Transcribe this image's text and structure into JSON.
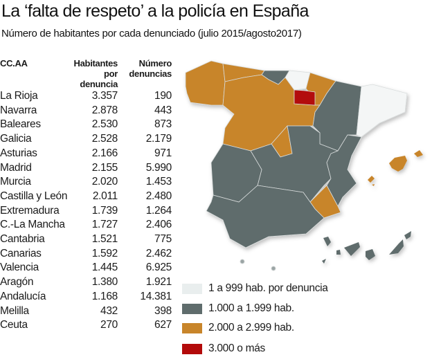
{
  "title": "La ‘falta de respeto’ a la policía en España",
  "subtitle": "Número de habitantes por cada denunciado (julio 2015/agosto2017)",
  "table": {
    "headers": [
      "CC.AA",
      "Habitantes por denuncia",
      "Número denuncias"
    ],
    "rows": [
      {
        "region": "La Rioja",
        "hab": "3.357",
        "den": "190"
      },
      {
        "region": "Navarra",
        "hab": "2.878",
        "den": "443"
      },
      {
        "region": "Baleares",
        "hab": "2.530",
        "den": "873"
      },
      {
        "region": "Galicia",
        "hab": "2.528",
        "den": "2.179"
      },
      {
        "region": "Asturias",
        "hab": "2.166",
        "den": "971"
      },
      {
        "region": "Madrid",
        "hab": "2.155",
        "den": "5.990"
      },
      {
        "region": "Murcia",
        "hab": "2.020",
        "den": "1.453"
      },
      {
        "region": "Castilla y León",
        "hab": "2.011",
        "den": "2.480"
      },
      {
        "region": "Extremadura",
        "hab": "1.739",
        "den": "1.264"
      },
      {
        "region": "C.-La Mancha",
        "hab": "1.727",
        "den": "2.406"
      },
      {
        "region": "Cantabria",
        "hab": "1.521",
        "den": "775"
      },
      {
        "region": "Canarias",
        "hab": "1.592",
        "den": "2.462"
      },
      {
        "region": "Valencia",
        "hab": "1.445",
        "den": "6.925"
      },
      {
        "region": "Aragón",
        "hab": "1.380",
        "den": "1.921"
      },
      {
        "region": "Andalucía",
        "hab": "1.168",
        "den": "14.381"
      },
      {
        "region": "Melilla",
        "hab": "432",
        "den": "398"
      },
      {
        "region": "Ceuta",
        "hab": "270",
        "den": "627"
      }
    ]
  },
  "legend": [
    {
      "label": "1 a 999 hab. por denuncia",
      "color": "#e9eeee"
    },
    {
      "label": "1.000 a 1.999 hab.",
      "color": "#5f6c6c"
    },
    {
      "label": "2.000 a 2.999 hab.",
      "color": "#c8852a"
    },
    {
      "label": "3.000 o más",
      "color": "#b30a0a"
    }
  ]
}
